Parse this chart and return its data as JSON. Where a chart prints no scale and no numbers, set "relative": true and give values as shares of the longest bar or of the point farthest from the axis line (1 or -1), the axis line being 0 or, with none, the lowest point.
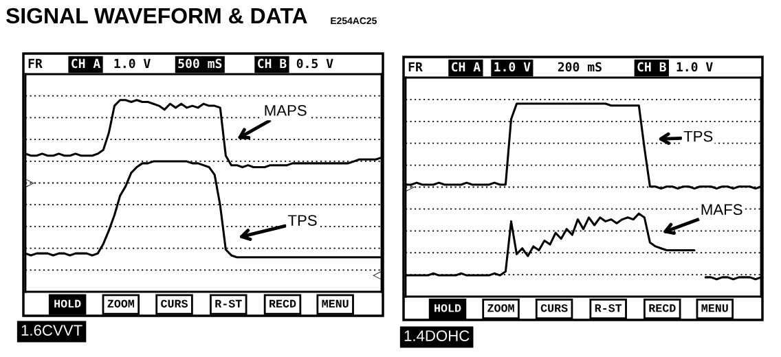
{
  "chart_data": [
    {
      "type": "line",
      "title": "SIGNAL WAVEFORM & DATA",
      "subtitle": "E254AC25",
      "relative": true,
      "grid": true,
      "categories": [
        null,
        null,
        null,
        null,
        null,
        null,
        null,
        null,
        null,
        null,
        null,
        null,
        null,
        null,
        null,
        null,
        null,
        null,
        null,
        null,
        null,
        null,
        null,
        null,
        null,
        null,
        null,
        null,
        null,
        null,
        null,
        null,
        null,
        null,
        null,
        null,
        null,
        null,
        null,
        null,
        null,
        null,
        null,
        null,
        null,
        null,
        null,
        null,
        null,
        null,
        null,
        null,
        null,
        null,
        null,
        null,
        null,
        null,
        null,
        null,
        null,
        null,
        null,
        null,
        null
      ],
      "series": [
        {
          "name": "MAPS",
          "color": "#000000",
          "values": [
            0.72,
            0.71,
            0.71,
            0.72,
            0.71,
            0.71,
            0.72,
            0.71,
            0.71,
            0.72,
            0.71,
            0.71,
            0.71,
            0.72,
            0.74,
            0.83,
            0.97,
            1.0,
            1.0,
            0.99,
            1.0,
            0.99,
            0.99,
            0.98,
            0.97,
            0.95,
            0.98,
            0.96,
            0.98,
            0.96,
            0.97,
            0.96,
            0.98,
            0.97,
            0.97,
            0.96,
            0.71,
            0.66,
            0.66,
            0.65,
            0.66,
            0.65,
            0.65,
            0.65,
            0.66,
            0.66,
            0.66,
            0.66,
            0.67,
            0.67,
            0.67,
            0.67,
            0.67,
            0.67,
            0.67,
            0.67,
            0.67,
            0.67,
            0.67,
            0.68,
            0.69,
            0.69,
            0.69,
            0.69,
            0.7
          ]
        },
        {
          "name": "TPS",
          "color": "#000000",
          "values": [
            0.2,
            0.19,
            0.2,
            0.2,
            0.2,
            0.19,
            0.2,
            0.2,
            0.19,
            0.2,
            0.2,
            0.2,
            0.19,
            0.2,
            0.25,
            0.32,
            0.4,
            0.5,
            0.55,
            0.62,
            0.65,
            0.67,
            0.67,
            0.68,
            0.68,
            0.68,
            0.68,
            0.68,
            0.68,
            0.68,
            0.67,
            0.67,
            0.66,
            0.65,
            0.61,
            0.45,
            0.22,
            0.19,
            0.18,
            0.18,
            0.18,
            0.18,
            0.18,
            0.18,
            0.18,
            0.18,
            0.18,
            0.18,
            0.18,
            0.18,
            0.18,
            0.18,
            0.18,
            0.18,
            0.18,
            0.18,
            0.18,
            0.18,
            0.18,
            0.18,
            0.18,
            0.18,
            0.18,
            0.18,
            0.18
          ]
        }
      ],
      "annotations": [
        "FR",
        "CH A",
        "1.0 V",
        "500 mS",
        "CH B",
        "0.5 V",
        "HOLD",
        "ZOOM",
        "CURS",
        "R-ST",
        "RECD",
        "MENU",
        "1.6CVVT",
        "▷",
        "◁"
      ]
    },
    {
      "type": "line",
      "relative": true,
      "grid": true,
      "categories": [
        null,
        null,
        null,
        null,
        null,
        null,
        null,
        null,
        null,
        null,
        null,
        null,
        null,
        null,
        null,
        null,
        null,
        null,
        null,
        null,
        null,
        null,
        null,
        null,
        null,
        null,
        null,
        null,
        null,
        null,
        null,
        null,
        null,
        null,
        null,
        null,
        null,
        null,
        null,
        null,
        null,
        null,
        null,
        null,
        null,
        null,
        null,
        null,
        null,
        null,
        null,
        null,
        null,
        null,
        null,
        null,
        null,
        null,
        null,
        null,
        null,
        null,
        null,
        null,
        null
      ],
      "series": [
        {
          "name": "TPS",
          "color": "#000000",
          "values": [
            0.58,
            0.58,
            0.59,
            0.58,
            0.58,
            0.58,
            0.59,
            0.58,
            0.58,
            0.58,
            0.58,
            0.59,
            0.58,
            0.58,
            0.58,
            0.58,
            0.59,
            0.58,
            0.58,
            0.92,
            1.0,
            1.0,
            1.0,
            1.0,
            1.0,
            1.0,
            1.0,
            1.0,
            1.0,
            1.0,
            1.0,
            1.0,
            1.0,
            1.0,
            1.0,
            1.0,
            1.0,
            0.99,
            0.99,
            0.99,
            0.99,
            0.99,
            0.99,
            0.77,
            0.57,
            0.57,
            0.56,
            0.57,
            0.57,
            0.56,
            0.57,
            0.57,
            0.56,
            0.57,
            0.57,
            0.57,
            0.56,
            0.57,
            0.57,
            0.56,
            0.57,
            0.57,
            0.57,
            0.56,
            0.57
          ]
        },
        {
          "name": "MAFS",
          "color": "#000000",
          "values": [
            0.11,
            0.11,
            0.11,
            0.11,
            0.11,
            0.12,
            0.11,
            0.11,
            0.11,
            0.11,
            0.12,
            0.11,
            0.11,
            0.11,
            0.11,
            0.11,
            0.12,
            0.11,
            0.13,
            0.39,
            0.22,
            0.25,
            0.21,
            0.26,
            0.24,
            0.29,
            0.27,
            0.33,
            0.3,
            0.35,
            0.32,
            0.4,
            0.35,
            0.41,
            0.37,
            0.41,
            0.39,
            0.4,
            0.38,
            0.4,
            0.41,
            0.4,
            0.43,
            0.41,
            0.28,
            0.26,
            0.25,
            0.24,
            0.24,
            0.24,
            0.24,
            0.24,
            0.24,
            null,
            0.1,
            0.1,
            0.09,
            0.1,
            0.1,
            0.09,
            0.1,
            0.1,
            0.1,
            0.09,
            0.1
          ]
        }
      ],
      "annotations": [
        "FR",
        "CH A",
        "1.0 V",
        "200 mS",
        "CH B",
        "1.0 V",
        "HOLD",
        "ZOOM",
        "CURS",
        "R-ST",
        "RECD",
        "MENU",
        "1.4DOHC",
        "▷"
      ]
    }
  ]
}
